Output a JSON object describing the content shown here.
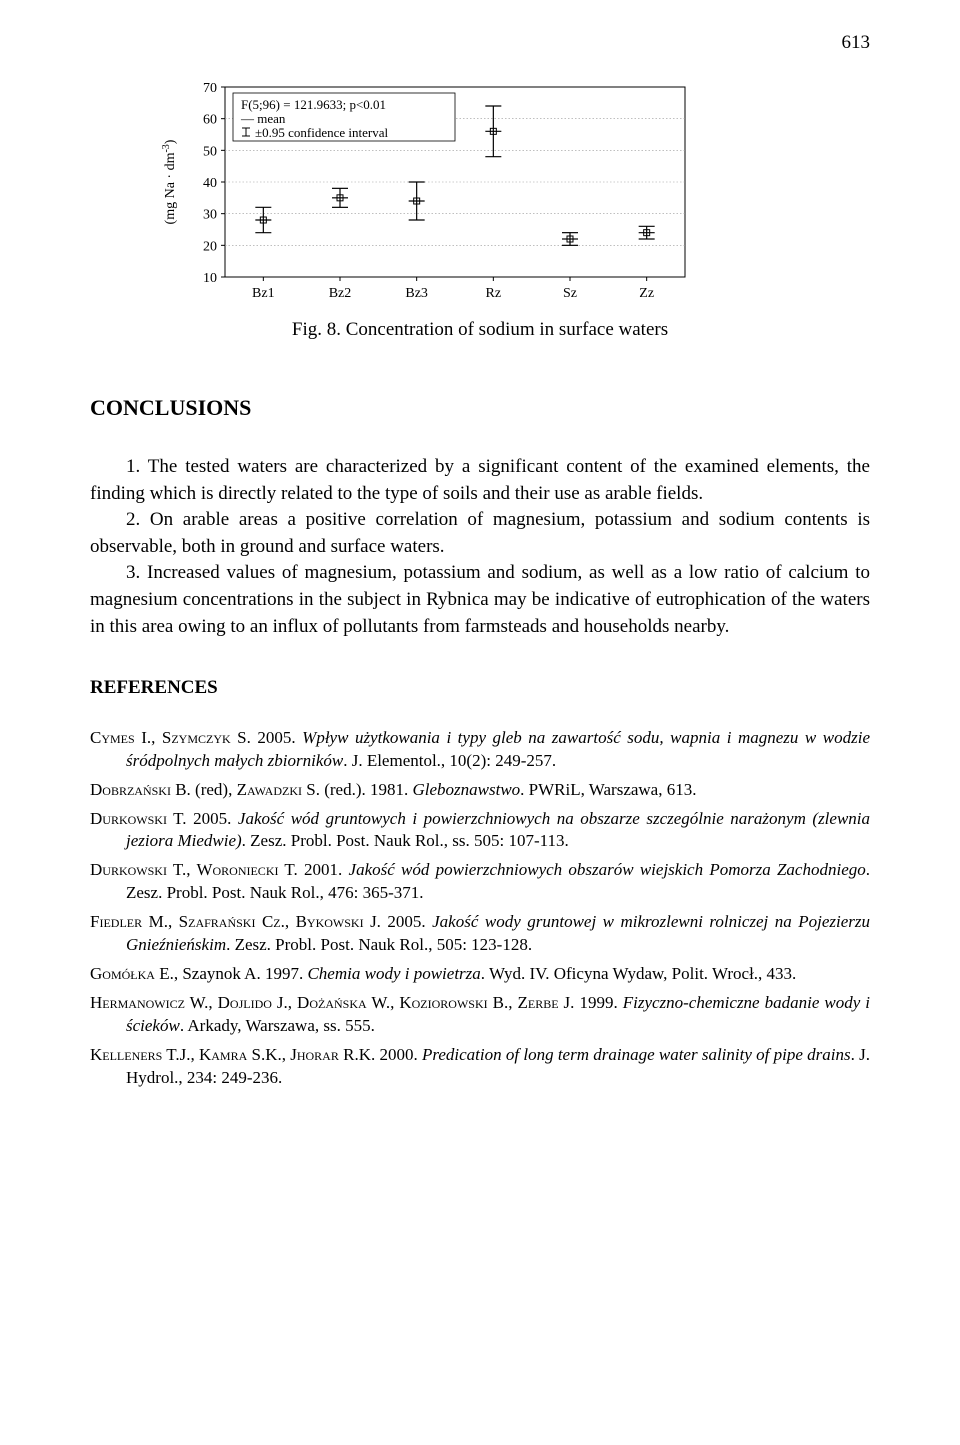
{
  "page_number": "613",
  "chart": {
    "type": "error-bar",
    "ylabel_html": "(mg Na · dm<tspan baseline-shift='super' font-size='10'>-3</tspan>)",
    "legend": {
      "stat": "F(5;96) = 121.9633; p<0.01",
      "mean": "— mean",
      "ci_symbol": "⌶",
      "ci": "±0.95 confidence interval"
    },
    "categories": [
      "Bz1",
      "Bz2",
      "Bz3",
      "Rz",
      "Sz",
      "Zz"
    ],
    "means": [
      28,
      35,
      34,
      56,
      22,
      24
    ],
    "ci_half": [
      4,
      3,
      6,
      8,
      2,
      2
    ],
    "ylim": [
      10,
      70
    ],
    "ytick_step": 10,
    "axis_color": "#000000",
    "grid_color": "#999999",
    "marker_color": "#000000",
    "background_color": "#ffffff",
    "font_size": 14
  },
  "figure_caption": "Fig. 8. Concentration of sodium in surface waters",
  "conclusions_heading": "CONCLUSIONS",
  "conclusions": [
    "1. The tested waters are characterized by a significant content of the examined elements, the finding which is directly related to the type of soils and their use as arable fields.",
    "2. On arable areas a positive correlation of magnesium, potassium and sodium contents is observable, both in ground and surface waters.",
    "3. Increased values of magnesium, potassium and sodium, as well as a low ratio of calcium to magnesium concentrations in the subject in Rybnica may be indicative of eutrophication of the waters in this area owing to an influx of pollutants from farmsteads and households nearby."
  ],
  "references_heading": "REFERENCES",
  "references": [
    "<span class='sc'>Cymes I., Szymczyk S.</span> 2005. <em>Wpływ użytkowania i typy gleb na zawartość sodu, wapnia i magnezu w wodzie śródpolnych małych zbiorników</em>. J. Elementol., 10(2): 249-257.",
    "<span class='sc'>Dobrzański B.</span> (red), <span class='sc'>Zawadzki S.</span> (red.). 1981. <em>Gleboznawstwo</em>. PWRiL, Warszawa, 613.",
    "<span class='sc'>Durkowski T.</span> 2005. <em>Jakość wód gruntowych i powierzchniowych na obszarze szczególnie narażonym (zlewnia jeziora Miedwie)</em>. Zesz. Probl. Post. Nauk Rol., ss. 505: 107-113.",
    "<span class='sc'>Durkowski T., Woroniecki T.</span> 2001. <em>Jakość wód powierzchniowych obszarów wiejskich Pomorza Zachodniego</em>. Zesz. Probl. Post. Nauk Rol., 476: 365-371.",
    "<span class='sc'>Fiedler M., Szafrański Cz., Bykowski J.</span> 2005. <em>Jakość wody gruntowej w mikrozlewni rolniczej na Pojezierzu Gnieźnieńskim</em>. Zesz. Probl. Post. Nauk Rol., 505: 123-128.",
    "<span class='sc'>Gomółka E.,</span> Szaynok A. 1997. <em>Chemia wody i powietrza</em>. Wyd. IV. Oficyna Wydaw, Polit. Wrocł., 433.",
    "<span class='sc'>Hermanowicz W., Dojlido J., Dożańska W., Koziorowski B., Zerbe J.</span> 1999. <em>Fizyczno-chemiczne badanie wody i ścieków</em>. Arkady, Warszawa, ss. 555.",
    "<span class='sc'>Kelleners T.J., Kamra S.K., Jhorar R.K.</span> 2000. <em>Predication of long term drainage water salinity of pipe drains</em>. J. Hydrol., 234: 249-236."
  ]
}
